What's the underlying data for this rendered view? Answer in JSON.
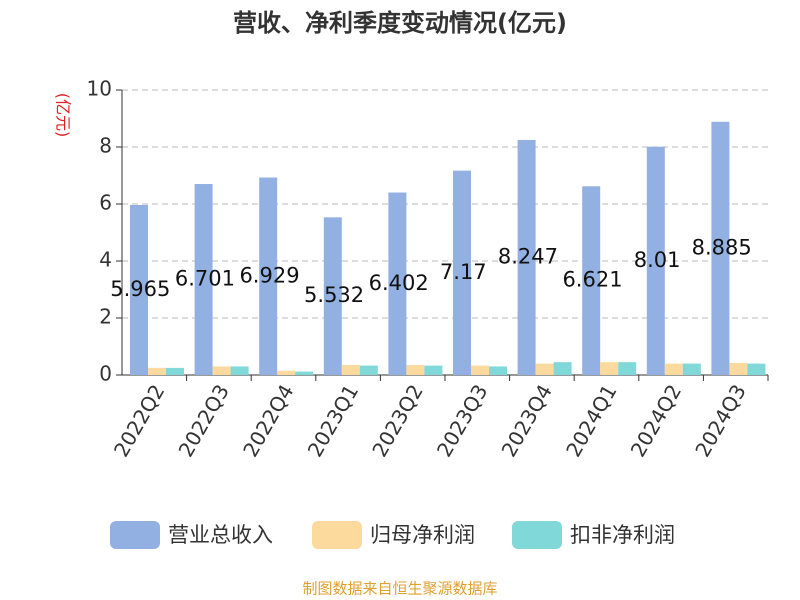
{
  "chart_data": {
    "type": "bar",
    "title": "营收、净利季度变动情况(亿元)",
    "y_label": "(亿元)",
    "categories": [
      "2022Q2",
      "2022Q3",
      "2022Q4",
      "2023Q1",
      "2023Q2",
      "2023Q3",
      "2023Q4",
      "2024Q1",
      "2024Q2",
      "2024Q3"
    ],
    "series": [
      {
        "name": "营业总收入",
        "color": "#92b1e2",
        "values": [
          5.965,
          6.701,
          6.929,
          5.532,
          6.402,
          7.17,
          8.247,
          6.621,
          8.01,
          8.885
        ]
      },
      {
        "name": "归母净利润",
        "color": "#fcd99c",
        "values": [
          0.25,
          0.3,
          0.15,
          0.35,
          0.35,
          0.33,
          0.4,
          0.45,
          0.4,
          0.42
        ]
      },
      {
        "name": "扣非净利润",
        "color": "#80d8d8",
        "values": [
          0.25,
          0.3,
          0.12,
          0.33,
          0.33,
          0.3,
          0.45,
          0.45,
          0.4,
          0.4
        ]
      }
    ],
    "ylim": [
      0,
      10
    ],
    "yticks": [
      0,
      2,
      4,
      6,
      8,
      10
    ],
    "grid": true,
    "footer": "制图数据来自恒生聚源数据库"
  }
}
